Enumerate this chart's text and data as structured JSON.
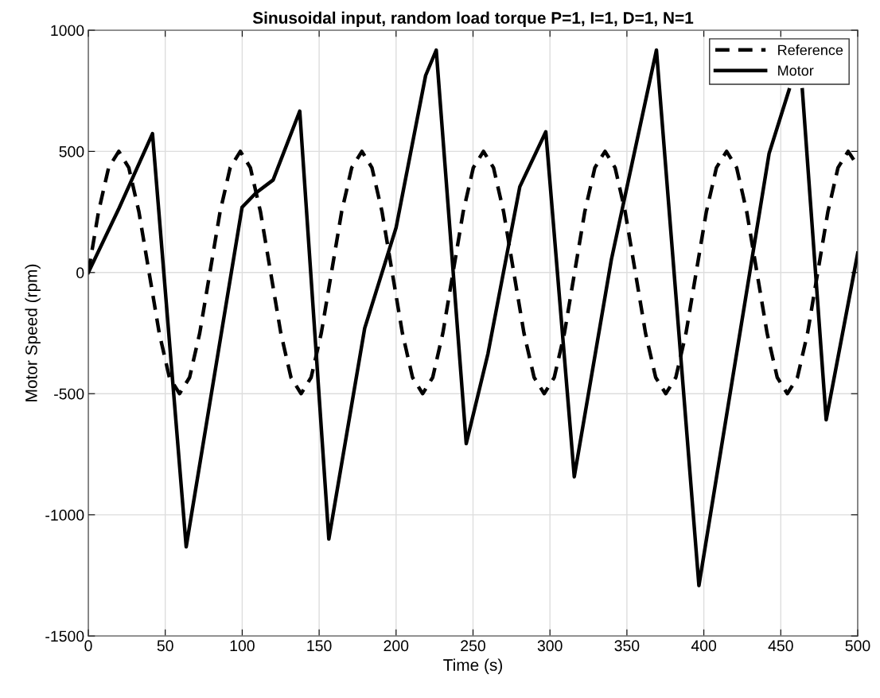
{
  "chart_data": {
    "type": "line",
    "title": "Sinusoidal input, random load torque P=1, I=1, D=1, N=1",
    "xlabel": "Time (s)",
    "ylabel": "Motor Speed (rpm)",
    "xlim": [
      0,
      500
    ],
    "xticks": [
      0,
      50,
      100,
      150,
      200,
      250,
      300,
      350,
      400,
      450,
      500
    ],
    "ylim": [
      -1500,
      1000
    ],
    "yticks": [
      -1500,
      -1000,
      -500,
      0,
      500,
      1000
    ],
    "grid": true,
    "legend": "top right",
    "marker": "none",
    "series": [
      {
        "name": "Reference",
        "color": "#000000",
        "line_style": "dashed",
        "x": [
          0,
          6.6,
          13.2,
          19.8,
          26.3,
          32.9,
          39.5,
          46.1,
          52.7,
          59.3,
          65.8,
          72.4,
          79.0,
          85.6,
          92.2,
          98.8,
          105.3,
          111.9,
          118.5,
          125.1,
          131.7,
          138.3,
          144.8,
          151.4,
          158.0,
          164.6,
          171.2,
          177.8,
          184.3,
          190.9,
          197.5,
          204.1,
          210.7,
          217.3,
          223.8,
          230.4,
          237.0,
          243.6,
          250.2,
          256.8,
          263.3,
          269.9,
          276.5,
          283.1,
          289.7,
          296.3,
          302.8,
          309.4,
          316.0,
          322.6,
          329.2,
          335.8,
          342.3,
          348.9,
          355.5,
          362.1,
          368.7,
          375.3,
          381.8,
          388.4,
          395.0,
          401.6,
          408.2,
          414.8,
          421.3,
          427.9,
          434.5,
          441.1,
          447.7,
          454.3,
          460.8,
          467.4,
          474.0,
          480.6,
          487.2,
          493.8,
          500
        ],
        "values": [
          0,
          250,
          433,
          500,
          433,
          250,
          0,
          -250,
          -433,
          -500,
          -433,
          -250,
          0,
          250,
          433,
          500,
          433,
          250,
          0,
          -250,
          -433,
          -500,
          -433,
          -250,
          0,
          250,
          433,
          500,
          433,
          250,
          0,
          -250,
          -433,
          -500,
          -433,
          -250,
          0,
          250,
          433,
          500,
          433,
          250,
          0,
          -250,
          -433,
          -500,
          -433,
          -250,
          0,
          250,
          433,
          500,
          433,
          250,
          0,
          -250,
          -433,
          -500,
          -433,
          -250,
          0,
          250,
          433,
          500,
          433,
          250,
          0,
          -250,
          -433,
          -500,
          -433,
          -250,
          0,
          250,
          433,
          500,
          440
        ]
      },
      {
        "name": "Motor",
        "color": "#000000",
        "line_style": "solid",
        "x": [
          0,
          20,
          41.7,
          63.6,
          99.9,
          108.9,
          120.1,
          137.4,
          156.3,
          179.6,
          200,
          219.2,
          226.1,
          245.6,
          259.7,
          280.4,
          297.3,
          315.8,
          339.9,
          369.2,
          396.8,
          442.4,
          455.4,
          460,
          464,
          479.5,
          500
        ],
        "values": [
          0,
          266,
          573,
          -1132,
          269,
          328,
          382,
          666,
          -1100,
          -230,
          185,
          813,
          918,
          -706,
          -335,
          354,
          581,
          -843,
          53,
          918,
          -1292,
          491,
          754,
          null,
          754,
          -608,
          80
        ]
      }
    ]
  }
}
